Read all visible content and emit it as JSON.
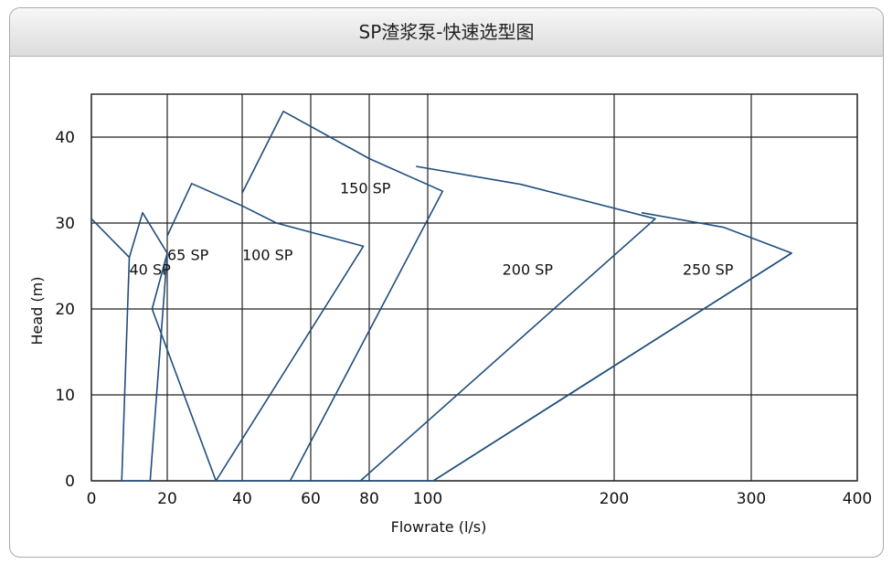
{
  "header": {
    "title": "SP渣浆泵-快速选型图"
  },
  "chart_data": {
    "type": "line",
    "title": "SP渣浆泵-快速选型图",
    "xlabel": "Flowrate (l/s)",
    "ylabel": "Head (m)",
    "xscale": "log",
    "xlim": [
      0,
      400
    ],
    "ylim": [
      0,
      45
    ],
    "x_ticks": [
      "0",
      "20",
      "40",
      "60",
      "80",
      "100",
      "200",
      "300",
      "400"
    ],
    "y_ticks": [
      "0",
      "10",
      "20",
      "30",
      "40"
    ],
    "grid": true,
    "series": [
      {
        "label": "40 SP",
        "label_pos": [
          10,
          24.5
        ],
        "points": [
          [
            0,
            30.5
          ],
          [
            10,
            26
          ],
          [
            13.5,
            31.2
          ],
          [
            20,
            26.5
          ],
          [
            15.5,
            0
          ],
          [
            8,
            0
          ],
          [
            10,
            26
          ]
        ]
      },
      {
        "label": "65 SP",
        "label_pos": [
          20,
          26.2
        ],
        "points": [
          [
            20,
            28.5
          ],
          [
            26.5,
            34.6
          ],
          [
            40,
            32
          ],
          [
            50,
            30
          ],
          [
            78,
            27.3
          ],
          [
            33,
            0
          ],
          [
            16,
            20
          ],
          [
            20,
            26.5
          ]
        ]
      },
      {
        "label": "100 SP",
        "label_pos": [
          40,
          26.2
        ],
        "points": [
          [
            40,
            33.5
          ],
          [
            52,
            43
          ],
          [
            80,
            37.5
          ],
          [
            108,
            33.7
          ],
          [
            54,
            0
          ],
          [
            33,
            0
          ]
        ]
      },
      {
        "label": "150 SP",
        "label_pos": [
          70,
          34
        ],
        "points": [
          [
            96,
            36.6
          ],
          [
            150,
            34.5
          ],
          [
            230,
            30.5
          ],
          [
            77,
            0
          ],
          [
            54,
            0
          ]
        ]
      },
      {
        "label": "200 SP",
        "label_pos": [
          140,
          24.5
        ],
        "points": [
          [
            220,
            31.2
          ],
          [
            280,
            29.5
          ],
          [
            338,
            26.5
          ],
          [
            103,
            0
          ],
          [
            77,
            0
          ]
        ]
      },
      {
        "label": "250 SP",
        "label_pos": [
          250,
          24.5
        ],
        "points": [
          [
            338,
            26.5
          ],
          [
            103,
            0
          ]
        ]
      }
    ]
  }
}
